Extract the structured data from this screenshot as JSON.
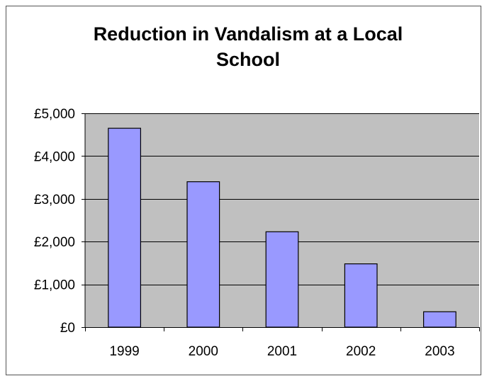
{
  "chart_data": {
    "type": "bar",
    "title_lines": [
      "Reduction in Vandalism at a Local",
      "School"
    ],
    "categories": [
      "1999",
      "2000",
      "2001",
      "2002",
      "2003"
    ],
    "values": [
      4650,
      3400,
      2230,
      1480,
      360
    ],
    "ylim": [
      0,
      5000
    ],
    "yticks": [
      0,
      1000,
      2000,
      3000,
      4000,
      5000
    ],
    "ytick_labels": [
      "£0",
      "£1,000",
      "£2,000",
      "£3,000",
      "£4,000",
      "£5,000"
    ],
    "xlabel": "",
    "ylabel": "",
    "grid": true,
    "legend": "none",
    "colors": {
      "bar_fill": "#9999ff",
      "bar_stroke": "#000000",
      "plot_background": "#c0c0c0",
      "gridline": "#000000"
    }
  }
}
